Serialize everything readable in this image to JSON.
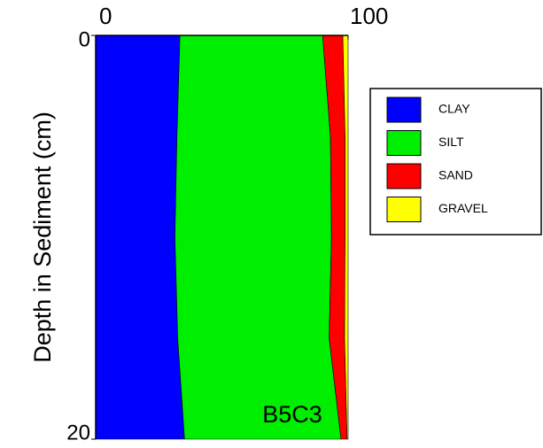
{
  "chart_data": {
    "type": "stacked-area-horizontal",
    "ylabel": "Depth in Sediment (cm)",
    "annotation": "B5C3",
    "x": [
      0,
      5,
      10,
      15,
      20
    ],
    "series": [
      {
        "name": "CLAY",
        "color": "#0000ff",
        "values": [
          33.4,
          32.2,
          31.4,
          32.5,
          35.2
        ]
      },
      {
        "name": "SILT",
        "color": "#00ee00",
        "values": [
          56.5,
          60.8,
          62.0,
          60.0,
          62.0
        ]
      },
      {
        "name": "SAND",
        "color": "#ff0000",
        "values": [
          8.0,
          5.8,
          5.4,
          6.1,
          2.4
        ]
      },
      {
        "name": "GRAVEL",
        "color": "#ffff00",
        "values": [
          2.1,
          1.2,
          1.2,
          1.4,
          0.4
        ]
      }
    ],
    "xlim": [
      0,
      100
    ],
    "xticks": [
      0,
      100
    ],
    "ylim": [
      0,
      20
    ],
    "yticks": [
      0,
      20
    ],
    "legend": "right"
  }
}
